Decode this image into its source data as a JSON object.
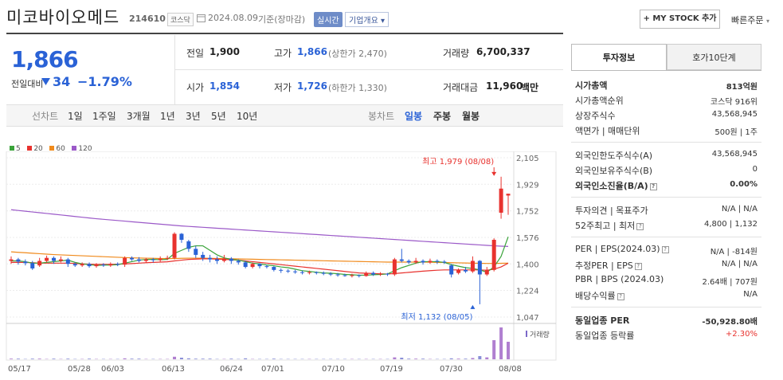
{
  "header": {
    "name": "미코바이오메드",
    "code": "214610",
    "market_badge": "코스닥",
    "date": "2024.08.09",
    "date_note": "기준(장마감)",
    "live_label": "실시간",
    "corp_info": "기업개요",
    "mystock": "+ MY STOCK 추가",
    "quick_order": "빠른주문"
  },
  "quote": {
    "price": "1,866",
    "change_label": "전일대비",
    "change": "34",
    "change_pct": "−1.79%",
    "prev_label": "전일",
    "prev": "1,900",
    "high_label": "고가",
    "high": "1,866",
    "upper_limit": "(상한가 2,470)",
    "volume_label": "거래량",
    "volume": "6,700,337",
    "open_label": "시가",
    "open": "1,854",
    "low_label": "저가",
    "low": "1,726",
    "lower_limit": "(하한가 1,330)",
    "amount_label": "거래대금",
    "amount": "11,960",
    "amount_unit": "백만"
  },
  "period_bar": {
    "label": "선차트",
    "periods": [
      "1일",
      "1주일",
      "3개월",
      "1년",
      "3년",
      "5년",
      "10년"
    ],
    "candle_label": "봉차트",
    "candle_types": [
      "일봉",
      "주봉",
      "월봉"
    ],
    "selected_candle": "일봉"
  },
  "chart_data": {
    "type": "candlestick",
    "ma_legend": [
      {
        "name": "5",
        "color": "#3aa33a"
      },
      {
        "name": "20",
        "color": "#e8322e"
      },
      {
        "name": "60",
        "color": "#f08a1c"
      },
      {
        "name": "120",
        "color": "#9b59c8"
      }
    ],
    "y_ticks": [
      "2,105",
      "1,929",
      "1,752",
      "1,576",
      "1,400",
      "1,224",
      "1,047"
    ],
    "ylim": [
      1047,
      2105
    ],
    "x_labels": [
      "05/17",
      "05/28",
      "06/03",
      "06/13",
      "06/24",
      "07/01",
      "07/10",
      "07/19",
      "07/30",
      "08/08"
    ],
    "volume_label": "거래량",
    "high_annotation": "최고 1,979 (08/08)",
    "low_annotation": "최저 1,132 (08/05)",
    "candles": [
      {
        "o": 1420,
        "c": 1430,
        "h": 1450,
        "l": 1400
      },
      {
        "o": 1430,
        "c": 1415,
        "h": 1440,
        "l": 1395
      },
      {
        "o": 1415,
        "c": 1405,
        "h": 1430,
        "l": 1390
      },
      {
        "o": 1405,
        "c": 1370,
        "h": 1420,
        "l": 1360
      },
      {
        "o": 1390,
        "c": 1420,
        "h": 1440,
        "l": 1380
      },
      {
        "o": 1420,
        "c": 1440,
        "h": 1455,
        "l": 1410
      },
      {
        "o": 1440,
        "c": 1420,
        "h": 1450,
        "l": 1400
      },
      {
        "o": 1420,
        "c": 1430,
        "h": 1450,
        "l": 1410
      },
      {
        "o": 1430,
        "c": 1400,
        "h": 1440,
        "l": 1380
      },
      {
        "o": 1400,
        "c": 1390,
        "h": 1410,
        "l": 1380
      },
      {
        "o": 1390,
        "c": 1400,
        "h": 1410,
        "l": 1380
      },
      {
        "o": 1400,
        "c": 1385,
        "h": 1410,
        "l": 1375
      },
      {
        "o": 1385,
        "c": 1395,
        "h": 1405,
        "l": 1375
      },
      {
        "o": 1395,
        "c": 1390,
        "h": 1405,
        "l": 1380
      },
      {
        "o": 1390,
        "c": 1400,
        "h": 1410,
        "l": 1380
      },
      {
        "o": 1400,
        "c": 1395,
        "h": 1410,
        "l": 1385
      },
      {
        "o": 1395,
        "c": 1440,
        "h": 1450,
        "l": 1380
      },
      {
        "o": 1440,
        "c": 1430,
        "h": 1450,
        "l": 1420
      },
      {
        "o": 1430,
        "c": 1420,
        "h": 1445,
        "l": 1410
      },
      {
        "o": 1420,
        "c": 1430,
        "h": 1440,
        "l": 1405
      },
      {
        "o": 1430,
        "c": 1425,
        "h": 1440,
        "l": 1410
      },
      {
        "o": 1425,
        "c": 1435,
        "h": 1450,
        "l": 1415
      },
      {
        "o": 1435,
        "c": 1440,
        "h": 1455,
        "l": 1425
      },
      {
        "o": 1440,
        "c": 1600,
        "h": 1610,
        "l": 1430
      },
      {
        "o": 1600,
        "c": 1560,
        "h": 1605,
        "l": 1540
      },
      {
        "o": 1550,
        "c": 1500,
        "h": 1560,
        "l": 1480
      },
      {
        "o": 1500,
        "c": 1460,
        "h": 1520,
        "l": 1440
      },
      {
        "o": 1460,
        "c": 1440,
        "h": 1480,
        "l": 1420
      },
      {
        "o": 1440,
        "c": 1430,
        "h": 1460,
        "l": 1410
      },
      {
        "o": 1430,
        "c": 1420,
        "h": 1450,
        "l": 1400
      },
      {
        "o": 1420,
        "c": 1435,
        "h": 1460,
        "l": 1410
      },
      {
        "o": 1435,
        "c": 1420,
        "h": 1445,
        "l": 1400
      },
      {
        "o": 1420,
        "c": 1410,
        "h": 1430,
        "l": 1395
      },
      {
        "o": 1410,
        "c": 1380,
        "h": 1420,
        "l": 1370
      },
      {
        "o": 1380,
        "c": 1400,
        "h": 1410,
        "l": 1370
      },
      {
        "o": 1400,
        "c": 1385,
        "h": 1405,
        "l": 1370
      },
      {
        "o": 1385,
        "c": 1380,
        "h": 1395,
        "l": 1370
      },
      {
        "o": 1380,
        "c": 1360,
        "h": 1385,
        "l": 1350
      },
      {
        "o": 1360,
        "c": 1355,
        "h": 1370,
        "l": 1340
      },
      {
        "o": 1355,
        "c": 1350,
        "h": 1365,
        "l": 1340
      },
      {
        "o": 1350,
        "c": 1345,
        "h": 1360,
        "l": 1335
      },
      {
        "o": 1345,
        "c": 1340,
        "h": 1355,
        "l": 1330
      },
      {
        "o": 1340,
        "c": 1345,
        "h": 1355,
        "l": 1330
      },
      {
        "o": 1345,
        "c": 1340,
        "h": 1350,
        "l": 1330
      },
      {
        "o": 1340,
        "c": 1335,
        "h": 1350,
        "l": 1325
      },
      {
        "o": 1335,
        "c": 1330,
        "h": 1345,
        "l": 1320
      },
      {
        "o": 1330,
        "c": 1325,
        "h": 1340,
        "l": 1315
      },
      {
        "o": 1325,
        "c": 1320,
        "h": 1335,
        "l": 1315
      },
      {
        "o": 1320,
        "c": 1325,
        "h": 1335,
        "l": 1310
      },
      {
        "o": 1325,
        "c": 1320,
        "h": 1330,
        "l": 1310
      },
      {
        "o": 1320,
        "c": 1340,
        "h": 1350,
        "l": 1315
      },
      {
        "o": 1340,
        "c": 1330,
        "h": 1350,
        "l": 1320
      },
      {
        "o": 1330,
        "c": 1335,
        "h": 1345,
        "l": 1320
      },
      {
        "o": 1335,
        "c": 1330,
        "h": 1340,
        "l": 1320
      },
      {
        "o": 1330,
        "c": 1430,
        "h": 1440,
        "l": 1320
      },
      {
        "o": 1430,
        "c": 1420,
        "h": 1500,
        "l": 1410
      },
      {
        "o": 1420,
        "c": 1410,
        "h": 1430,
        "l": 1400
      },
      {
        "o": 1410,
        "c": 1420,
        "h": 1440,
        "l": 1400
      },
      {
        "o": 1420,
        "c": 1410,
        "h": 1430,
        "l": 1395
      },
      {
        "o": 1410,
        "c": 1420,
        "h": 1435,
        "l": 1400
      },
      {
        "o": 1420,
        "c": 1415,
        "h": 1430,
        "l": 1400
      },
      {
        "o": 1415,
        "c": 1410,
        "h": 1425,
        "l": 1400
      },
      {
        "o": 1390,
        "c": 1330,
        "h": 1400,
        "l": 1310
      },
      {
        "o": 1340,
        "c": 1360,
        "h": 1370,
        "l": 1330
      },
      {
        "o": 1360,
        "c": 1350,
        "h": 1380,
        "l": 1340
      },
      {
        "o": 1350,
        "c": 1420,
        "h": 1450,
        "l": 1340
      },
      {
        "o": 1420,
        "c": 1330,
        "h": 1425,
        "l": 1132
      },
      {
        "o": 1330,
        "c": 1360,
        "h": 1380,
        "l": 1320
      },
      {
        "o": 1360,
        "c": 1560,
        "h": 1570,
        "l": 1350
      },
      {
        "o": 1740,
        "c": 1900,
        "h": 1979,
        "l": 1700
      },
      {
        "o": 1854,
        "c": 1866,
        "h": 1866,
        "l": 1726
      }
    ],
    "ma5": [
      1420,
      1420,
      1415,
      1405,
      1405,
      1410,
      1415,
      1420,
      1425,
      1410,
      1400,
      1395,
      1390,
      1392,
      1393,
      1395,
      1405,
      1415,
      1425,
      1430,
      1430,
      1428,
      1430,
      1470,
      1490,
      1510,
      1520,
      1520,
      1490,
      1460,
      1440,
      1430,
      1425,
      1415,
      1405,
      1400,
      1393,
      1388,
      1380,
      1375,
      1365,
      1355,
      1350,
      1345,
      1340,
      1338,
      1335,
      1330,
      1328,
      1325,
      1325,
      1328,
      1330,
      1333,
      1355,
      1375,
      1390,
      1405,
      1415,
      1415,
      1415,
      1410,
      1395,
      1385,
      1375,
      1370,
      1360,
      1345,
      1380,
      1450,
      1580
    ],
    "ma20": [
      1410,
      1410,
      1410,
      1408,
      1405,
      1405,
      1405,
      1405,
      1405,
      1403,
      1400,
      1398,
      1397,
      1397,
      1397,
      1398,
      1400,
      1402,
      1405,
      1408,
      1410,
      1412,
      1414,
      1420,
      1425,
      1430,
      1432,
      1434,
      1434,
      1432,
      1430,
      1428,
      1425,
      1420,
      1415,
      1410,
      1405,
      1400,
      1395,
      1390,
      1385,
      1380,
      1375,
      1370,
      1365,
      1360,
      1355,
      1350,
      1345,
      1340,
      1338,
      1336,
      1334,
      1333,
      1336,
      1340,
      1344,
      1348,
      1352,
      1355,
      1358,
      1360,
      1360,
      1360,
      1360,
      1360,
      1360,
      1358,
      1365,
      1380,
      1405
    ],
    "ma60": [
      1480,
      1477,
      1474,
      1471,
      1468,
      1465,
      1462,
      1460,
      1458,
      1456,
      1454,
      1452,
      1450,
      1448,
      1446,
      1444,
      1442,
      1440,
      1439,
      1438,
      1437,
      1436,
      1435,
      1436,
      1437,
      1438,
      1438,
      1438,
      1437,
      1436,
      1435,
      1434,
      1433,
      1432,
      1431,
      1430,
      1429,
      1428,
      1427,
      1426,
      1425,
      1424,
      1423,
      1422,
      1421,
      1420,
      1419,
      1418,
      1417,
      1416,
      1415,
      1414,
      1413,
      1412,
      1412,
      1412,
      1412,
      1412,
      1412,
      1411,
      1410,
      1409,
      1408,
      1407,
      1406,
      1405,
      1404,
      1403,
      1403,
      1404,
      1405
    ],
    "ma120": [
      1760,
      1755,
      1750,
      1745,
      1740,
      1735,
      1730,
      1725,
      1720,
      1715,
      1710,
      1705,
      1700,
      1696,
      1692,
      1688,
      1684,
      1680,
      1676,
      1672,
      1668,
      1664,
      1660,
      1656,
      1652,
      1649,
      1646,
      1643,
      1640,
      1637,
      1634,
      1631,
      1628,
      1625,
      1622,
      1619,
      1616,
      1613,
      1610,
      1607,
      1604,
      1601,
      1598,
      1595,
      1592,
      1589,
      1586,
      1583,
      1580,
      1577,
      1574,
      1571,
      1568,
      1565,
      1562,
      1559,
      1556,
      1553,
      1550,
      1547,
      1544,
      1541,
      1538,
      1535,
      1532,
      1529,
      1526,
      1523,
      1520,
      1518,
      1516
    ],
    "volumes": [
      2,
      2,
      1,
      2,
      2,
      1,
      2,
      1,
      2,
      1,
      1,
      2,
      1,
      1,
      1,
      1,
      3,
      2,
      2,
      1,
      1,
      1,
      1,
      8,
      5,
      3,
      2,
      2,
      2,
      1,
      1,
      2,
      1,
      3,
      1,
      1,
      1,
      2,
      1,
      1,
      1,
      1,
      1,
      1,
      1,
      1,
      1,
      1,
      1,
      1,
      1,
      1,
      1,
      1,
      6,
      5,
      2,
      2,
      2,
      1,
      1,
      1,
      3,
      2,
      2,
      4,
      10,
      6,
      60,
      100,
      55
    ]
  },
  "right_panel": {
    "tab_active": "투자정보",
    "tab_other": "호가10단계",
    "rows1": [
      {
        "label": "시가총액",
        "value": "813억원",
        "bold": true
      },
      {
        "label": "시가총액순위",
        "value": "코스닥 916위"
      },
      {
        "label": "상장주식수",
        "value": "43,568,945"
      },
      {
        "label": "액면가 | 매매단위",
        "value": "500원 | 1주"
      }
    ],
    "rows2": [
      {
        "label": "외국인한도주식수(A)",
        "value": "43,568,945"
      },
      {
        "label": "외국인보유주식수(B)",
        "value": "0"
      },
      {
        "label": "외국인소진율(B/A)",
        "value": "0.00%",
        "bold": true
      }
    ],
    "rows3": [
      {
        "label": "투자의견 | 목표주가",
        "value": "N/A | N/A"
      },
      {
        "label": "52주최고 | 최저",
        "value": "4,800 | 1,132"
      }
    ],
    "rows4": [
      {
        "label": "PER | EPS(2024.03)",
        "value": "N/A | -814원"
      },
      {
        "label": "추정PER | EPS",
        "value": "N/A | N/A"
      },
      {
        "label": "PBR | BPS (2024.03)",
        "value": "2.64배 | 707원"
      },
      {
        "label": "배당수익률",
        "value": "N/A"
      }
    ],
    "rows5": [
      {
        "label": "동일업종 PER",
        "value": "-50,928.80배",
        "bold": true
      },
      {
        "label": "동일업종 등락률",
        "value": "+2.30%",
        "red": true
      }
    ]
  }
}
